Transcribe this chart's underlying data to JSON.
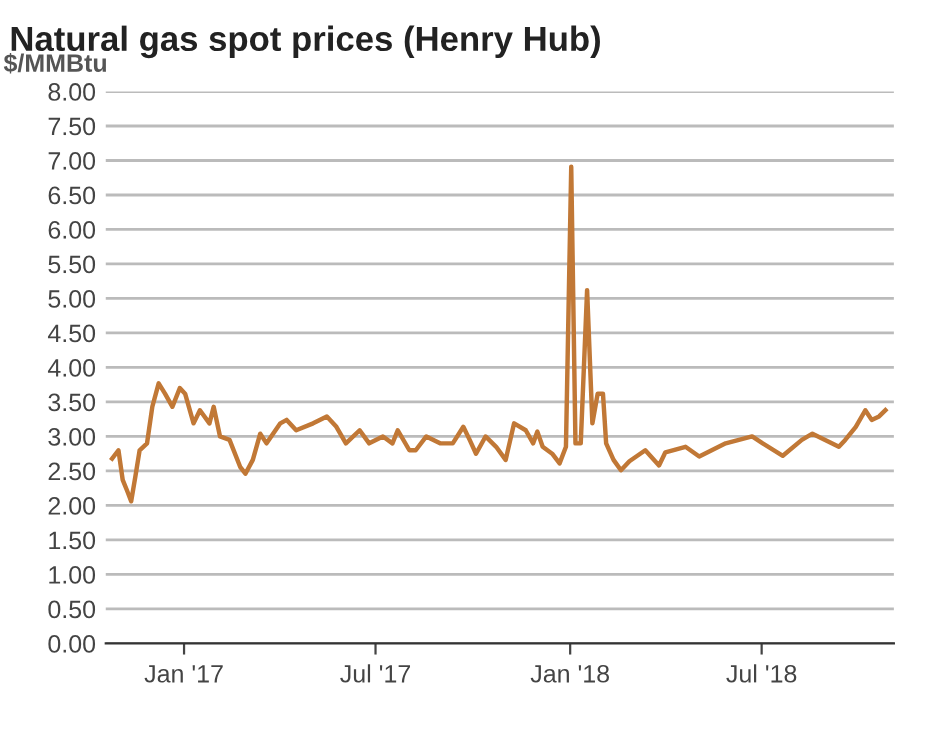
{
  "chart_data": {
    "type": "line",
    "title": "Natural gas spot prices (Henry Hub)",
    "ylabel": "$/MMBtu",
    "series": [
      {
        "color": "#c17836",
        "x": [
          "2016-10-25",
          "2016-10-31",
          "2016-11-04",
          "2016-11-08",
          "2016-11-12",
          "2016-11-16",
          "2016-11-20",
          "2016-11-27",
          "2016-12-02",
          "2016-12-08",
          "2016-12-14",
          "2016-12-21",
          "2016-12-28",
          "2017-01-02",
          "2017-01-10",
          "2017-01-16",
          "2017-01-25",
          "2017-01-29",
          "2017-02-04",
          "2017-02-13",
          "2017-02-23",
          "2017-02-28",
          "2017-03-07",
          "2017-03-14",
          "2017-03-20",
          "2017-04-02",
          "2017-04-08",
          "2017-04-17",
          "2017-05-03",
          "2017-05-16",
          "2017-05-25",
          "2017-06-03",
          "2017-06-16",
          "2017-06-25",
          "2017-07-08",
          "2017-07-17",
          "2017-07-22",
          "2017-08-02",
          "2017-08-08",
          "2017-08-18",
          "2017-08-31",
          "2017-09-12",
          "2017-09-22",
          "2017-09-28",
          "2017-10-04",
          "2017-10-13",
          "2017-10-23",
          "2017-11-01",
          "2017-11-09",
          "2017-11-20",
          "2017-11-27",
          "2017-12-01",
          "2017-12-06",
          "2017-12-15",
          "2017-12-22",
          "2017-12-28",
          "2018-01-02",
          "2018-01-06",
          "2018-01-11",
          "2018-01-17",
          "2018-01-22",
          "2018-01-27",
          "2018-02-01",
          "2018-02-04",
          "2018-02-11",
          "2018-02-18",
          "2018-02-26",
          "2018-03-13",
          "2018-03-26",
          "2018-04-01",
          "2018-04-20",
          "2018-05-03",
          "2018-05-28",
          "2018-06-22",
          "2018-07-02",
          "2018-07-21",
          "2018-08-08",
          "2018-08-18",
          "2018-08-30",
          "2018-09-12",
          "2018-09-18",
          "2018-09-28",
          "2018-10-07",
          "2018-10-13",
          "2018-10-20",
          "2018-10-26"
        ],
        "values": [
          2.68,
          2.8,
          2.37,
          2.22,
          2.06,
          2.42,
          2.8,
          2.9,
          3.43,
          3.77,
          3.62,
          3.43,
          3.7,
          3.62,
          3.19,
          3.38,
          3.19,
          3.43,
          3.0,
          2.95,
          2.56,
          2.46,
          2.66,
          3.04,
          2.9,
          3.19,
          3.24,
          3.09,
          3.19,
          3.29,
          3.14,
          2.9,
          3.09,
          2.9,
          3.0,
          2.9,
          3.09,
          2.8,
          2.8,
          3.0,
          2.9,
          2.9,
          3.14,
          2.95,
          2.75,
          3.0,
          2.85,
          2.66,
          3.19,
          3.09,
          2.9,
          3.07,
          2.85,
          2.75,
          2.61,
          2.85,
          6.91,
          2.9,
          2.9,
          5.12,
          3.19,
          3.62,
          3.62,
          2.9,
          2.66,
          2.51,
          2.64,
          2.8,
          2.58,
          2.77,
          2.85,
          2.71,
          2.9,
          3.0,
          2.9,
          2.72,
          2.95,
          3.04,
          2.95,
          2.85,
          2.95,
          3.14,
          3.38,
          3.24,
          3.29,
          3.38
        ]
      }
    ],
    "xlim": [
      "2016-10-19",
      "2018-11-03"
    ],
    "xticks": [
      {
        "value": "2017-01-01",
        "label": "Jan '17"
      },
      {
        "value": "2017-07-01",
        "label": "Jul '17"
      },
      {
        "value": "2018-01-01",
        "label": "Jan '18"
      },
      {
        "value": "2018-07-01",
        "label": "Jul '18"
      }
    ],
    "ylim": [
      0,
      8
    ],
    "yticks": [
      {
        "value": 0,
        "label": "0.00"
      },
      {
        "value": 0.5,
        "label": "0.50"
      },
      {
        "value": 1,
        "label": "1.00"
      },
      {
        "value": 1.5,
        "label": "1.50"
      },
      {
        "value": 2,
        "label": "2.00"
      },
      {
        "value": 2.5,
        "label": "2.50"
      },
      {
        "value": 3,
        "label": "3.00"
      },
      {
        "value": 3.5,
        "label": "3.50"
      },
      {
        "value": 4,
        "label": "4.00"
      },
      {
        "value": 4.5,
        "label": "4.50"
      },
      {
        "value": 5,
        "label": "5.00"
      },
      {
        "value": 5.5,
        "label": "5.50"
      },
      {
        "value": 6,
        "label": "6.00"
      },
      {
        "value": 6.5,
        "label": "6.50"
      },
      {
        "value": 7,
        "label": "7.00"
      },
      {
        "value": 7.5,
        "label": "7.50"
      },
      {
        "value": 8,
        "label": "8.00"
      }
    ],
    "grid": "y"
  }
}
